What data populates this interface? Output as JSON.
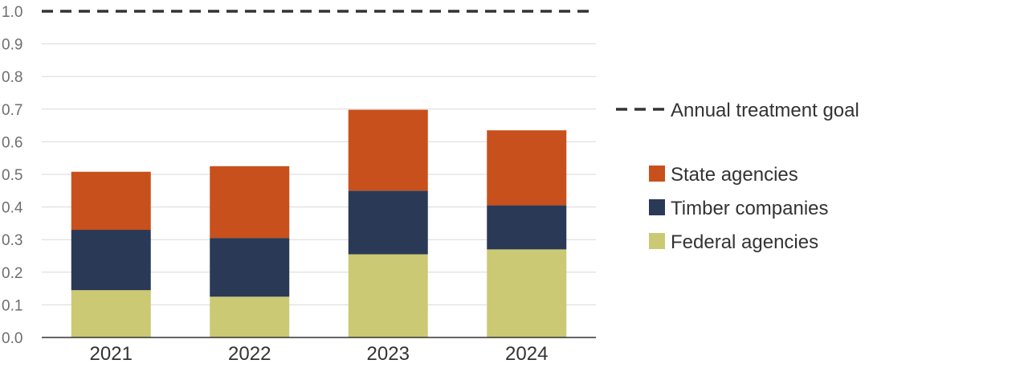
{
  "chart_data": {
    "type": "bar",
    "stacked": true,
    "categories": [
      "2021",
      "2022",
      "2023",
      "2024"
    ],
    "series": [
      {
        "name": "Federal agencies",
        "color": "#cbc973",
        "values": [
          0.145,
          0.125,
          0.255,
          0.27
        ]
      },
      {
        "name": "Timber companies",
        "color": "#2a3a56",
        "values": [
          0.185,
          0.18,
          0.195,
          0.135
        ]
      },
      {
        "name": "State agencies",
        "color": "#c8501c",
        "values": [
          0.178,
          0.22,
          0.248,
          0.23
        ]
      }
    ],
    "reference_line": {
      "name": "Annual treatment goal",
      "value": 1.0,
      "style": "dashed",
      "color": "#333333"
    },
    "ylim": [
      0,
      1.0
    ],
    "yticks": [
      "0.0",
      "0.1",
      "0.2",
      "0.3",
      "0.4",
      "0.5",
      "0.6",
      "0.7",
      "0.8",
      "0.9",
      "1.0"
    ],
    "grid": true,
    "legend_position": "right",
    "legend_order": [
      "State agencies",
      "Timber companies",
      "Federal agencies"
    ]
  }
}
